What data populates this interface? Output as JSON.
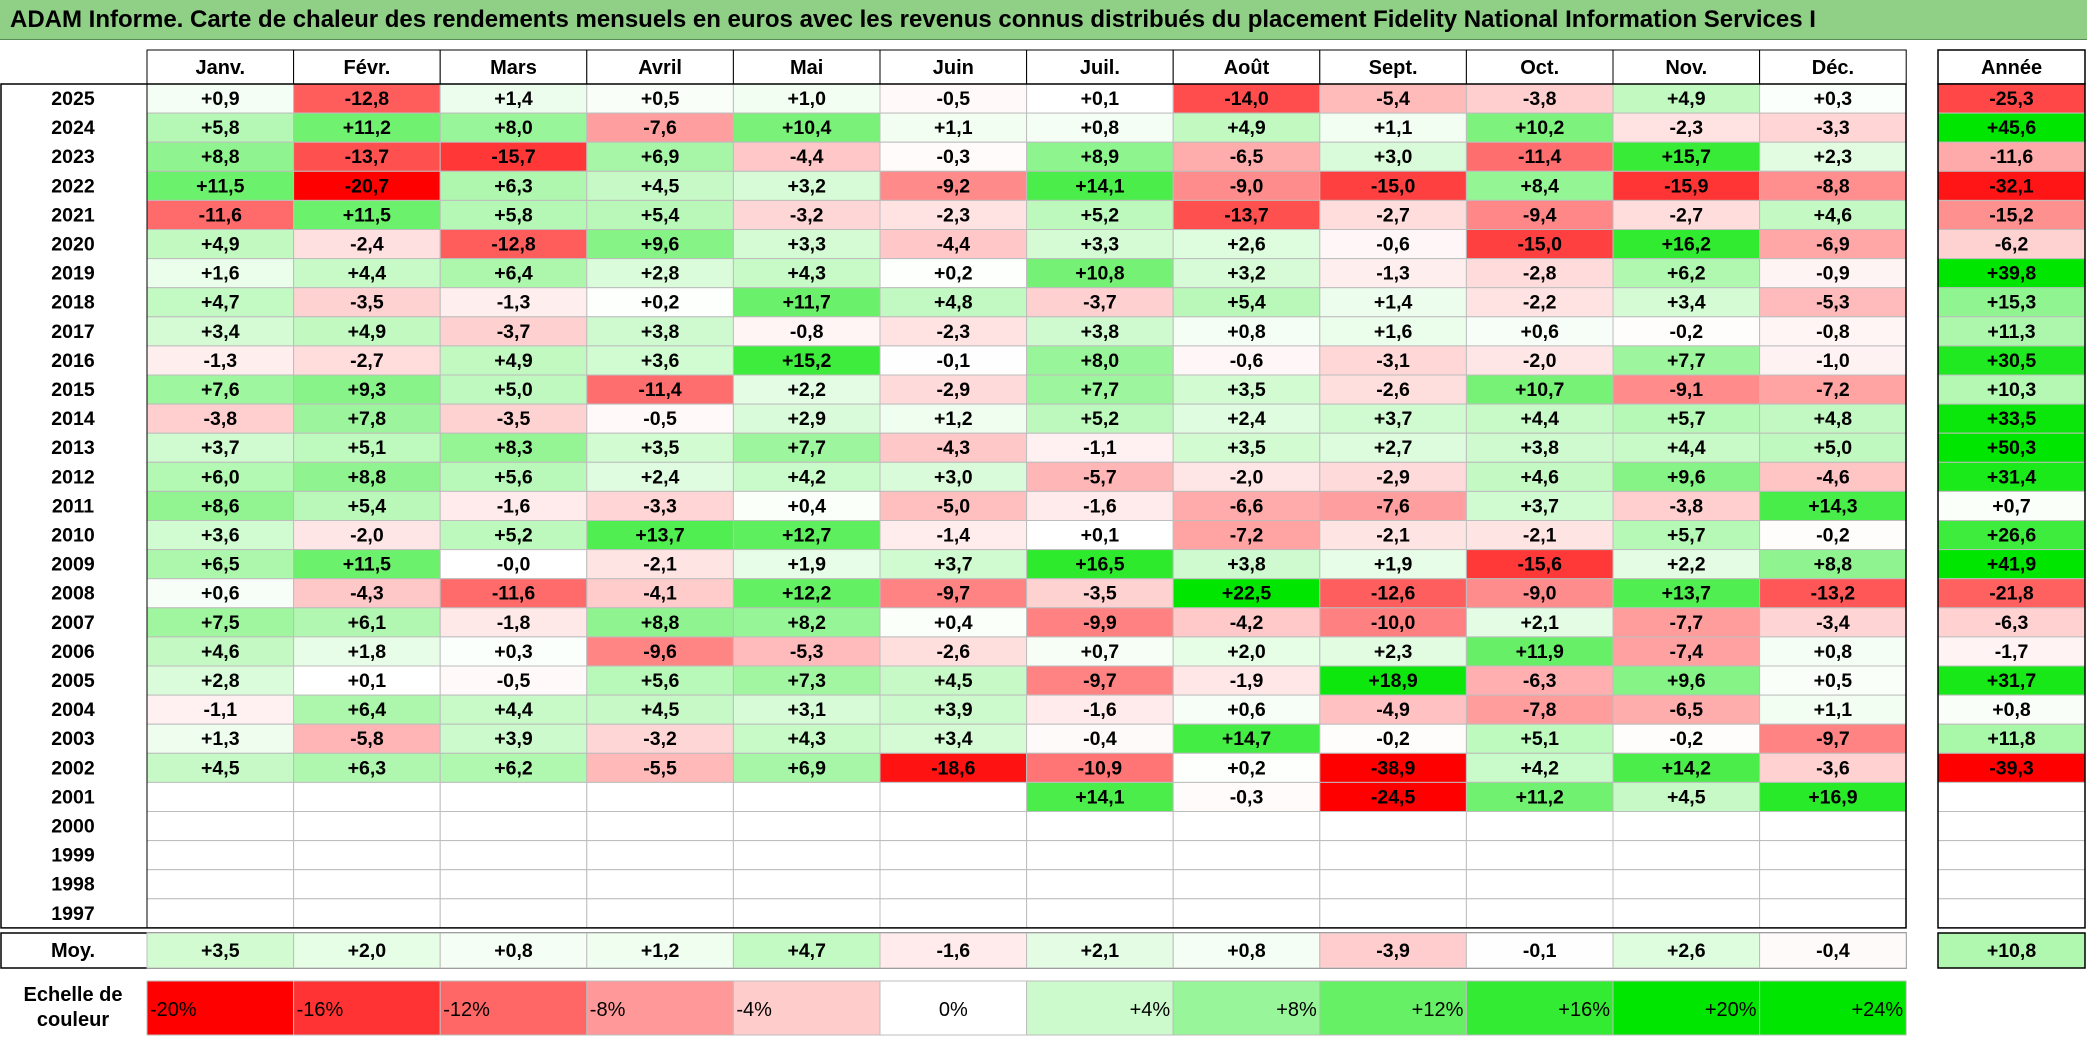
{
  "title": "ADAM Informe. Carte de chaleur des rendements mensuels en euros avec les revenus connus distribués du placement Fidelity National Information Services I",
  "chart_data": {
    "type": "heatmap",
    "title": "ADAM Informe. Carte de chaleur des rendements mensuels en euros avec les revenus connus distribués du placement Fidelity National Information Services I",
    "months": [
      "Janv.",
      "Févr.",
      "Mars",
      "Avril",
      "Mai",
      "Juin",
      "Juil.",
      "Août",
      "Sept.",
      "Oct.",
      "Nov.",
      "Déc."
    ],
    "year_header": "Année",
    "rows": [
      {
        "year": "2025",
        "values": [
          "+0,9",
          "-12,8",
          "+1,4",
          "+0,5",
          "+1,0",
          "-0,5",
          "+0,1",
          "-14,0",
          "-5,4",
          "-3,8",
          "+4,9",
          "+0,3"
        ],
        "annual": "-25,3"
      },
      {
        "year": "2024",
        "values": [
          "+5,8",
          "+11,2",
          "+8,0",
          "-7,6",
          "+10,4",
          "+1,1",
          "+0,8",
          "+4,9",
          "+1,1",
          "+10,2",
          "-2,3",
          "-3,3"
        ],
        "annual": "+45,6"
      },
      {
        "year": "2023",
        "values": [
          "+8,8",
          "-13,7",
          "-15,7",
          "+6,9",
          "-4,4",
          "-0,3",
          "+8,9",
          "-6,5",
          "+3,0",
          "-11,4",
          "+15,7",
          "+2,3"
        ],
        "annual": "-11,6"
      },
      {
        "year": "2022",
        "values": [
          "+11,5",
          "-20,7",
          "+6,3",
          "+4,5",
          "+3,2",
          "-9,2",
          "+14,1",
          "-9,0",
          "-15,0",
          "+8,4",
          "-15,9",
          "-8,8"
        ],
        "annual": "-32,1"
      },
      {
        "year": "2021",
        "values": [
          "-11,6",
          "+11,5",
          "+5,8",
          "+5,4",
          "-3,2",
          "-2,3",
          "+5,2",
          "-13,7",
          "-2,7",
          "-9,4",
          "-2,7",
          "+4,6"
        ],
        "annual": "-15,2"
      },
      {
        "year": "2020",
        "values": [
          "+4,9",
          "-2,4",
          "-12,8",
          "+9,6",
          "+3,3",
          "-4,4",
          "+3,3",
          "+2,6",
          "-0,6",
          "-15,0",
          "+16,2",
          "-6,9"
        ],
        "annual": "-6,2"
      },
      {
        "year": "2019",
        "values": [
          "+1,6",
          "+4,4",
          "+6,4",
          "+2,8",
          "+4,3",
          "+0,2",
          "+10,8",
          "+3,2",
          "-1,3",
          "-2,8",
          "+6,2",
          "-0,9"
        ],
        "annual": "+39,8"
      },
      {
        "year": "2018",
        "values": [
          "+4,7",
          "-3,5",
          "-1,3",
          "+0,2",
          "+11,7",
          "+4,8",
          "-3,7",
          "+5,4",
          "+1,4",
          "-2,2",
          "+3,4",
          "-5,3"
        ],
        "annual": "+15,3"
      },
      {
        "year": "2017",
        "values": [
          "+3,4",
          "+4,9",
          "-3,7",
          "+3,8",
          "-0,8",
          "-2,3",
          "+3,8",
          "+0,8",
          "+1,6",
          "+0,6",
          "-0,2",
          "-0,8"
        ],
        "annual": "+11,3"
      },
      {
        "year": "2016",
        "values": [
          "-1,3",
          "-2,7",
          "+4,9",
          "+3,6",
          "+15,2",
          "-0,1",
          "+8,0",
          "-0,6",
          "-3,1",
          "-2,0",
          "+7,7",
          "-1,0"
        ],
        "annual": "+30,5"
      },
      {
        "year": "2015",
        "values": [
          "+7,6",
          "+9,3",
          "+5,0",
          "-11,4",
          "+2,2",
          "-2,9",
          "+7,7",
          "+3,5",
          "-2,6",
          "+10,7",
          "-9,1",
          "-7,2"
        ],
        "annual": "+10,3"
      },
      {
        "year": "2014",
        "values": [
          "-3,8",
          "+7,8",
          "-3,5",
          "-0,5",
          "+2,9",
          "+1,2",
          "+5,2",
          "+2,4",
          "+3,7",
          "+4,4",
          "+5,7",
          "+4,8"
        ],
        "annual": "+33,5"
      },
      {
        "year": "2013",
        "values": [
          "+3,7",
          "+5,1",
          "+8,3",
          "+3,5",
          "+7,7",
          "-4,3",
          "-1,1",
          "+3,5",
          "+2,7",
          "+3,8",
          "+4,4",
          "+5,0"
        ],
        "annual": "+50,3"
      },
      {
        "year": "2012",
        "values": [
          "+6,0",
          "+8,8",
          "+5,6",
          "+2,4",
          "+4,2",
          "+3,0",
          "-5,7",
          "-2,0",
          "-2,9",
          "+4,6",
          "+9,6",
          "-4,6"
        ],
        "annual": "+31,4"
      },
      {
        "year": "2011",
        "values": [
          "+8,6",
          "+5,4",
          "-1,6",
          "-3,3",
          "+0,4",
          "-5,0",
          "-1,6",
          "-6,6",
          "-7,6",
          "+3,7",
          "-3,8",
          "+14,3"
        ],
        "annual": "+0,7"
      },
      {
        "year": "2010",
        "values": [
          "+3,6",
          "-2,0",
          "+5,2",
          "+13,7",
          "+12,7",
          "-1,4",
          "+0,1",
          "-7,2",
          "-2,1",
          "-2,1",
          "+5,7",
          "-0,2"
        ],
        "annual": "+26,6"
      },
      {
        "year": "2009",
        "values": [
          "+6,5",
          "+11,5",
          "-0,0",
          "-2,1",
          "+1,9",
          "+3,7",
          "+16,5",
          "+3,8",
          "+1,9",
          "-15,6",
          "+2,2",
          "+8,8"
        ],
        "annual": "+41,9"
      },
      {
        "year": "2008",
        "values": [
          "+0,6",
          "-4,3",
          "-11,6",
          "-4,1",
          "+12,2",
          "-9,7",
          "-3,5",
          "+22,5",
          "-12,6",
          "-9,0",
          "+13,7",
          "-13,2"
        ],
        "annual": "-21,8"
      },
      {
        "year": "2007",
        "values": [
          "+7,5",
          "+6,1",
          "-1,8",
          "+8,8",
          "+8,2",
          "+0,4",
          "-9,9",
          "-4,2",
          "-10,0",
          "+2,1",
          "-7,7",
          "-3,4"
        ],
        "annual": "-6,3"
      },
      {
        "year": "2006",
        "values": [
          "+4,6",
          "+1,8",
          "+0,3",
          "-9,6",
          "-5,3",
          "-2,6",
          "+0,7",
          "+2,0",
          "+2,3",
          "+11,9",
          "-7,4",
          "+0,8"
        ],
        "annual": "-1,7"
      },
      {
        "year": "2005",
        "values": [
          "+2,8",
          "+0,1",
          "-0,5",
          "+5,6",
          "+7,3",
          "+4,5",
          "-9,7",
          "-1,9",
          "+18,9",
          "-6,3",
          "+9,6",
          "+0,5"
        ],
        "annual": "+31,7"
      },
      {
        "year": "2004",
        "values": [
          "-1,1",
          "+6,4",
          "+4,4",
          "+4,5",
          "+3,1",
          "+3,9",
          "-1,6",
          "+0,6",
          "-4,9",
          "-7,8",
          "-6,5",
          "+1,1"
        ],
        "annual": "+0,8"
      },
      {
        "year": "2003",
        "values": [
          "+1,3",
          "-5,8",
          "+3,9",
          "-3,2",
          "+4,3",
          "+3,4",
          "-0,4",
          "+14,7",
          "-0,2",
          "+5,1",
          "-0,2",
          "-9,7"
        ],
        "annual": "+11,8"
      },
      {
        "year": "2002",
        "values": [
          "+4,5",
          "+6,3",
          "+6,2",
          "-5,5",
          "+6,9",
          "-18,6",
          "-10,9",
          "+0,2",
          "-38,9",
          "+4,2",
          "+14,2",
          "-3,6"
        ],
        "annual": "-39,3"
      },
      {
        "year": "2001",
        "values": [
          "",
          "",
          "",
          "",
          "",
          "",
          "+14,1",
          "-0,3",
          "-24,5",
          "+11,2",
          "+4,5",
          "+16,9"
        ],
        "annual": ""
      },
      {
        "year": "2000",
        "values": [
          "",
          "",
          "",
          "",
          "",
          "",
          "",
          "",
          "",
          "",
          "",
          ""
        ],
        "annual": ""
      },
      {
        "year": "1999",
        "values": [
          "",
          "",
          "",
          "",
          "",
          "",
          "",
          "",
          "",
          "",
          "",
          ""
        ],
        "annual": ""
      },
      {
        "year": "1998",
        "values": [
          "",
          "",
          "",
          "",
          "",
          "",
          "",
          "",
          "",
          "",
          "",
          ""
        ],
        "annual": ""
      },
      {
        "year": "1997",
        "values": [
          "",
          "",
          "",
          "",
          "",
          "",
          "",
          "",
          "",
          "",
          "",
          ""
        ],
        "annual": ""
      }
    ],
    "average": {
      "label": "Moy.",
      "values": [
        "+3,5",
        "+2,0",
        "+0,8",
        "+1,2",
        "+4,7",
        "-1,6",
        "+2,1",
        "+0,8",
        "-3,9",
        "-0,1",
        "+2,6",
        "-0,4"
      ],
      "annual": "+10,8"
    },
    "scale": {
      "label_line1": "Echelle de",
      "label_line2": "couleur",
      "steps": [
        "-20%",
        "-16%",
        "-12%",
        "-8%",
        "-4%",
        "0%",
        "+4%",
        "+8%",
        "+12%",
        "+16%",
        "+20%",
        "+24%"
      ]
    },
    "colors": {
      "negative_max": "#ff0000",
      "neutral": "#ffffff",
      "positive_max": "#00e600",
      "header_bg": "#8fcf86"
    }
  }
}
